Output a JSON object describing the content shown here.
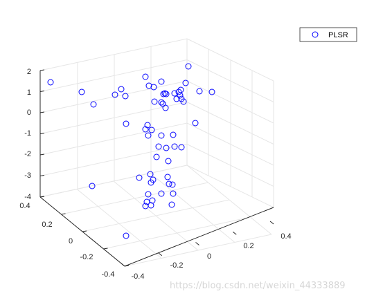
{
  "chart_data": {
    "type": "scatter",
    "projection": "3d",
    "series": [
      {
        "name": "PLSR",
        "marker": "open-circle",
        "color": "#0000ff"
      }
    ],
    "axes": {
      "x": {
        "ticks": [
          "-0.4",
          "-0.2",
          "0",
          "0.2",
          "0.4"
        ],
        "range": [
          -0.4,
          0.4
        ]
      },
      "y": {
        "ticks": [
          "-0.4",
          "-0.2",
          "0",
          "0.2",
          "0.4"
        ],
        "range": [
          -0.4,
          0.4
        ]
      },
      "z": {
        "ticks": [
          "-4",
          "-3",
          "-2",
          "-1",
          "0",
          "1",
          "2"
        ],
        "range": [
          -4,
          2
        ]
      }
    },
    "grid": true,
    "box": "open",
    "legend_position": "top-right"
  },
  "legend": {
    "label": "PLSR"
  },
  "watermark": "https://blog.csdn.net/weixin_44333889",
  "colors": {
    "marker": "#0000ff",
    "grid": "#e6e6e6",
    "axis": "#262626",
    "background": "#ffffff"
  }
}
